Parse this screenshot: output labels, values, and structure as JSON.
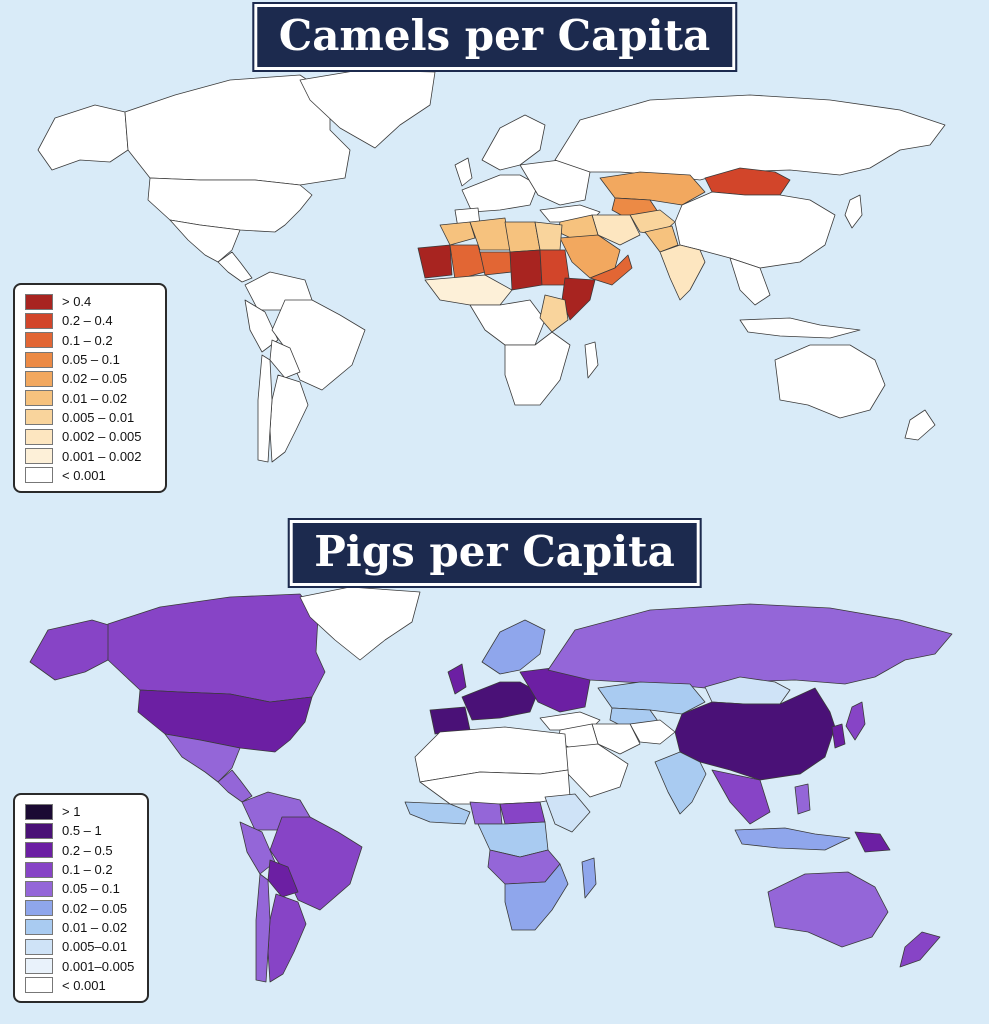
{
  "maps": [
    {
      "title": "Camels per Capita",
      "colors": {
        "none": "#ffffff",
        "c_1": "#fdf0d8",
        "c_2": "#fde6c0",
        "c_3": "#f9d49c",
        "c_4": "#f6c27e",
        "c_5": "#f2a85f",
        "c_6": "#ec8a45",
        "c_7": "#e26634",
        "c_8": "#d2452a",
        "c_9": "#a82420"
      },
      "legend": [
        {
          "label": "> 0.4",
          "color": "#a82420"
        },
        {
          "label": "0.2 – 0.4",
          "color": "#d2452a"
        },
        {
          "label": "0.1 – 0.2",
          "color": "#e26634"
        },
        {
          "label": "0.05 – 0.1",
          "color": "#ec8a45"
        },
        {
          "label": "0.02 – 0.05",
          "color": "#f2a85f"
        },
        {
          "label": "0.01 – 0.02",
          "color": "#f6c27e"
        },
        {
          "label": "0.005 – 0.01",
          "color": "#f9d49c"
        },
        {
          "label": "0.002 – 0.005",
          "color": "#fde6c0"
        },
        {
          "label": "0.001 – 0.002",
          "color": "#fdf0d8"
        },
        {
          "label": "< 0.001",
          "color": "#ffffff"
        }
      ]
    },
    {
      "title": "Pigs per Capita",
      "colors": {
        "none": "#ffffff",
        "p_1": "#e9f2fb",
        "p_2": "#cfe3f7",
        "p_3": "#a9cbf1",
        "p_4": "#8fa6ec",
        "p_5": "#9466d8",
        "p_6": "#8744c6",
        "p_7": "#6c1fa3",
        "p_8": "#4a1177",
        "p_9": "#1b0a33"
      },
      "legend": [
        {
          "label": "> 1",
          "color": "#1b0a33"
        },
        {
          "label": "0.5 – 1",
          "color": "#4a1177"
        },
        {
          "label": "0.2 – 0.5",
          "color": "#6c1fa3"
        },
        {
          "label": "0.1 – 0.2",
          "color": "#8744c6"
        },
        {
          "label": "0.05 – 0.1",
          "color": "#9466d8"
        },
        {
          "label": "0.02 – 0.05",
          "color": "#8fa6ec"
        },
        {
          "label": "0.01 – 0.02",
          "color": "#a9cbf1"
        },
        {
          "label": "0.005–0.01",
          "color": "#cfe3f7"
        },
        {
          "label": "0.001–0.005",
          "color": "#e9f2fb"
        },
        {
          "label": "< 0.001",
          "color": "#ffffff"
        }
      ]
    }
  ]
}
